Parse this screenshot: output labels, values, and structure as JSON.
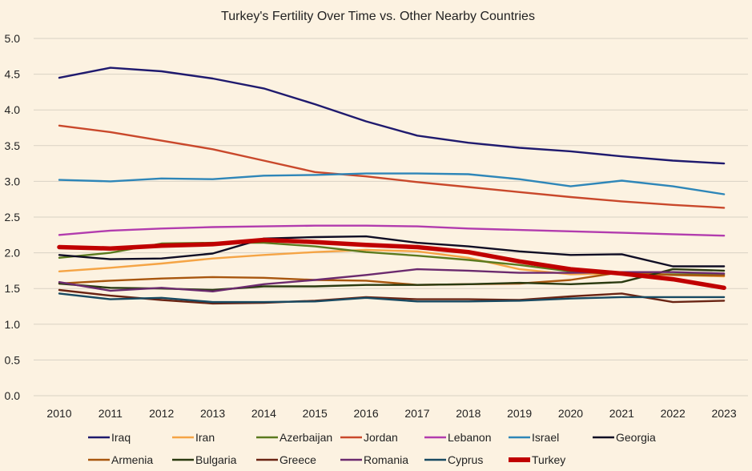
{
  "chart_data": {
    "type": "line",
    "title": "Turkey's Fertility Over Time vs. Other Nearby Countries",
    "xlabel": "",
    "ylabel": "",
    "ylim": [
      0,
      5
    ],
    "yticks": [
      "0.0",
      "0.5",
      "1.0",
      "1.5",
      "2.0",
      "2.5",
      "3.0",
      "3.5",
      "4.0",
      "4.5",
      "5.0"
    ],
    "categories": [
      "2010",
      "2011",
      "2012",
      "2013",
      "2014",
      "2015",
      "2016",
      "2017",
      "2018",
      "2019",
      "2020",
      "2021",
      "2022",
      "2023"
    ],
    "grid": true,
    "legend_position": "bottom",
    "series": [
      {
        "name": "Iraq",
        "color": "#1f1a6e",
        "values": [
          4.45,
          4.59,
          4.54,
          4.44,
          4.3,
          4.08,
          3.84,
          3.64,
          3.54,
          3.47,
          3.42,
          3.35,
          3.29,
          3.25
        ]
      },
      {
        "name": "Iran",
        "color": "#f5a445",
        "values": [
          1.74,
          1.79,
          1.85,
          1.92,
          1.97,
          2.01,
          2.04,
          2.02,
          1.93,
          1.77,
          1.7,
          1.71,
          1.69,
          1.67
        ]
      },
      {
        "name": "Azerbaijan",
        "color": "#5b7a1e",
        "values": [
          1.93,
          2.0,
          2.13,
          2.14,
          2.14,
          2.09,
          2.01,
          1.96,
          1.9,
          1.83,
          1.74,
          1.7,
          1.7,
          1.7
        ]
      },
      {
        "name": "Jordan",
        "color": "#c9482b",
        "values": [
          3.78,
          3.69,
          3.57,
          3.45,
          3.29,
          3.13,
          3.07,
          2.99,
          2.92,
          2.85,
          2.78,
          2.72,
          2.67,
          2.63
        ]
      },
      {
        "name": "Lebanon",
        "color": "#b23cae",
        "values": [
          2.25,
          2.31,
          2.34,
          2.36,
          2.37,
          2.38,
          2.38,
          2.37,
          2.34,
          2.32,
          2.3,
          2.28,
          2.26,
          2.24
        ]
      },
      {
        "name": "Israel",
        "color": "#2e86b8",
        "values": [
          3.02,
          3.0,
          3.04,
          3.03,
          3.08,
          3.09,
          3.11,
          3.11,
          3.1,
          3.03,
          2.93,
          3.01,
          2.93,
          2.82
        ]
      },
      {
        "name": "Georgia",
        "color": "#0f0d24",
        "values": [
          1.97,
          1.91,
          1.92,
          1.99,
          2.2,
          2.22,
          2.23,
          2.14,
          2.09,
          2.02,
          1.97,
          1.98,
          1.81,
          1.81
        ]
      },
      {
        "name": "Armenia",
        "color": "#a8560e",
        "values": [
          1.57,
          1.61,
          1.64,
          1.66,
          1.65,
          1.62,
          1.61,
          1.55,
          1.56,
          1.57,
          1.62,
          1.73,
          1.69,
          1.68
        ]
      },
      {
        "name": "Bulgaria",
        "color": "#2a3a10",
        "values": [
          1.57,
          1.51,
          1.5,
          1.48,
          1.53,
          1.53,
          1.55,
          1.55,
          1.56,
          1.58,
          1.56,
          1.59,
          1.77,
          1.75
        ]
      },
      {
        "name": "Greece",
        "color": "#6a2413",
        "values": [
          1.48,
          1.4,
          1.34,
          1.29,
          1.3,
          1.33,
          1.38,
          1.35,
          1.35,
          1.34,
          1.39,
          1.43,
          1.31,
          1.33
        ]
      },
      {
        "name": "Romania",
        "color": "#6b2a6e",
        "values": [
          1.59,
          1.47,
          1.51,
          1.46,
          1.56,
          1.62,
          1.69,
          1.77,
          1.75,
          1.72,
          1.72,
          1.73,
          1.73,
          1.71
        ]
      },
      {
        "name": "Cyprus",
        "color": "#184a62",
        "values": [
          1.43,
          1.35,
          1.37,
          1.31,
          1.31,
          1.32,
          1.37,
          1.32,
          1.32,
          1.33,
          1.36,
          1.38,
          1.38,
          1.38
        ]
      },
      {
        "name": "Turkey",
        "color": "#c00000",
        "values": [
          2.08,
          2.06,
          2.1,
          2.12,
          2.18,
          2.15,
          2.11,
          2.08,
          2.01,
          1.88,
          1.77,
          1.71,
          1.63,
          1.51
        ]
      }
    ]
  }
}
